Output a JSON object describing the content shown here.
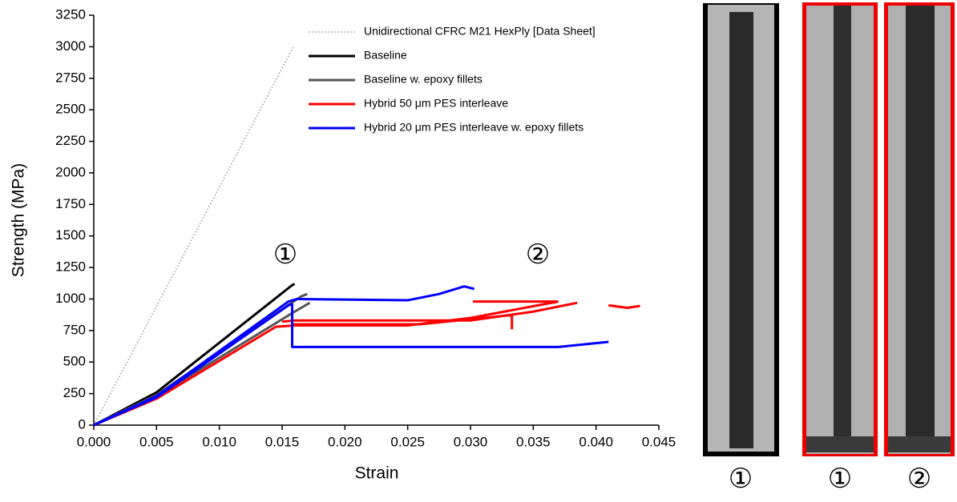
{
  "chart_data": {
    "type": "line",
    "xlabel": "Strain",
    "ylabel": "Strength (MPa)",
    "xlim": [
      0,
      0.045
    ],
    "ylim": [
      0,
      3250
    ],
    "xticks": [
      {
        "value": 0,
        "label": "0.000"
      },
      {
        "value": 0.005,
        "label": "0.005"
      },
      {
        "value": 0.01,
        "label": "0.010"
      },
      {
        "value": 0.015,
        "label": "0.015"
      },
      {
        "value": 0.02,
        "label": "0.020"
      },
      {
        "value": 0.025,
        "label": "0.025"
      },
      {
        "value": 0.03,
        "label": "0.030"
      },
      {
        "value": 0.035,
        "label": "0.035"
      },
      {
        "value": 0.04,
        "label": "0.040"
      },
      {
        "value": 0.045,
        "label": "0.045"
      }
    ],
    "yticks": [
      0,
      250,
      500,
      750,
      1000,
      1250,
      1500,
      1750,
      2000,
      2250,
      2500,
      2750,
      3000,
      3250
    ],
    "legend": "upper right",
    "series": [
      {
        "name": "Unidirectional CFRC M21 HexPly [Data Sheet]",
        "color": "#999999",
        "dash": "dotted",
        "x": [
          0,
          0.0159
        ],
        "values": [
          0,
          3000
        ]
      },
      {
        "name": "Baseline",
        "color": "#000000",
        "x": [
          0,
          0.005,
          0.0158,
          0.016
        ],
        "values": [
          0,
          260,
          1110,
          1120
        ]
      },
      {
        "name": "Baseline w. epoxy fillets",
        "color": "#555555",
        "x": [
          0,
          0.005,
          0.0165,
          0.017,
          null,
          0,
          0.005,
          0.016,
          0.0172
        ],
        "values": [
          0,
          240,
          1020,
          1040,
          null,
          0,
          230,
          900,
          970
        ]
      },
      {
        "name": "Hybrid 50 μm PES interleave",
        "color": "#ff0000",
        "x": [
          0,
          0.005,
          0.0145,
          0.016,
          0.025,
          0.03,
          0.037,
          null,
          0.015,
          0.016,
          0.03,
          0.035,
          0.0385,
          null,
          0.0158,
          0.026,
          0.033,
          0.0333,
          0.0333,
          null,
          0.0302,
          0.037,
          null,
          0.041,
          0.0425,
          0.0435
        ],
        "values": [
          0,
          210,
          780,
          790,
          790,
          850,
          980,
          null,
          820,
          830,
          830,
          900,
          970,
          null,
          800,
          800,
          870,
          870,
          760,
          null,
          980,
          980,
          null,
          950,
          930,
          945
        ]
      },
      {
        "name": "Hybrid 20 μm PES interleave w. epoxy fillets",
        "color": "#0000ff",
        "x": [
          0,
          0.005,
          0.0155,
          0.0162,
          0.025,
          0.0275,
          0.0295,
          0.0303,
          null,
          0,
          0.005,
          0.0155,
          0.0158,
          0.0158,
          0.037,
          0.041
        ],
        "values": [
          0,
          230,
          980,
          1000,
          990,
          1040,
          1100,
          1080,
          null,
          0,
          220,
          950,
          960,
          620,
          620,
          660
        ]
      }
    ],
    "annotations": [
      "①",
      "②"
    ],
    "photo_labels": [
      "①",
      "①",
      "②"
    ]
  }
}
